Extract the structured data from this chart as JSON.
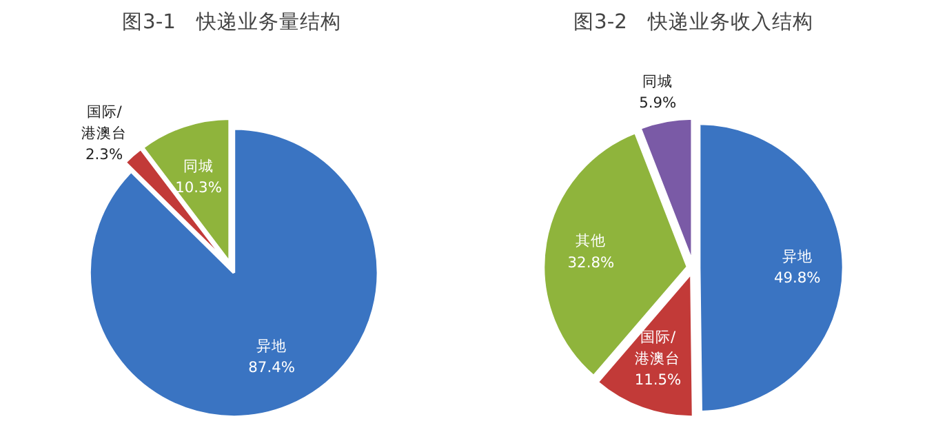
{
  "chart_data": [
    {
      "type": "pie",
      "title": "图3-1　快递业务量结构",
      "categories": [
        "异地",
        "国际/港澳台",
        "同城"
      ],
      "values": [
        87.4,
        2.3,
        10.3
      ],
      "colors": [
        "#3a74c2",
        "#c23a38",
        "#8fb43c"
      ],
      "value_labels": [
        "87.4%",
        "2.3%",
        "10.3%"
      ],
      "legend": false
    },
    {
      "type": "pie",
      "title": "图3-2　快递业务收入结构",
      "categories": [
        "异地",
        "国际/港澳台",
        "其他",
        "同城"
      ],
      "values": [
        49.8,
        11.5,
        32.8,
        5.9
      ],
      "colors": [
        "#3a74c2",
        "#c23a38",
        "#8fb43c",
        "#7a5aa6"
      ],
      "value_labels": [
        "49.8%",
        "11.5%",
        "32.8%",
        "5.9%"
      ],
      "legend": false
    }
  ]
}
